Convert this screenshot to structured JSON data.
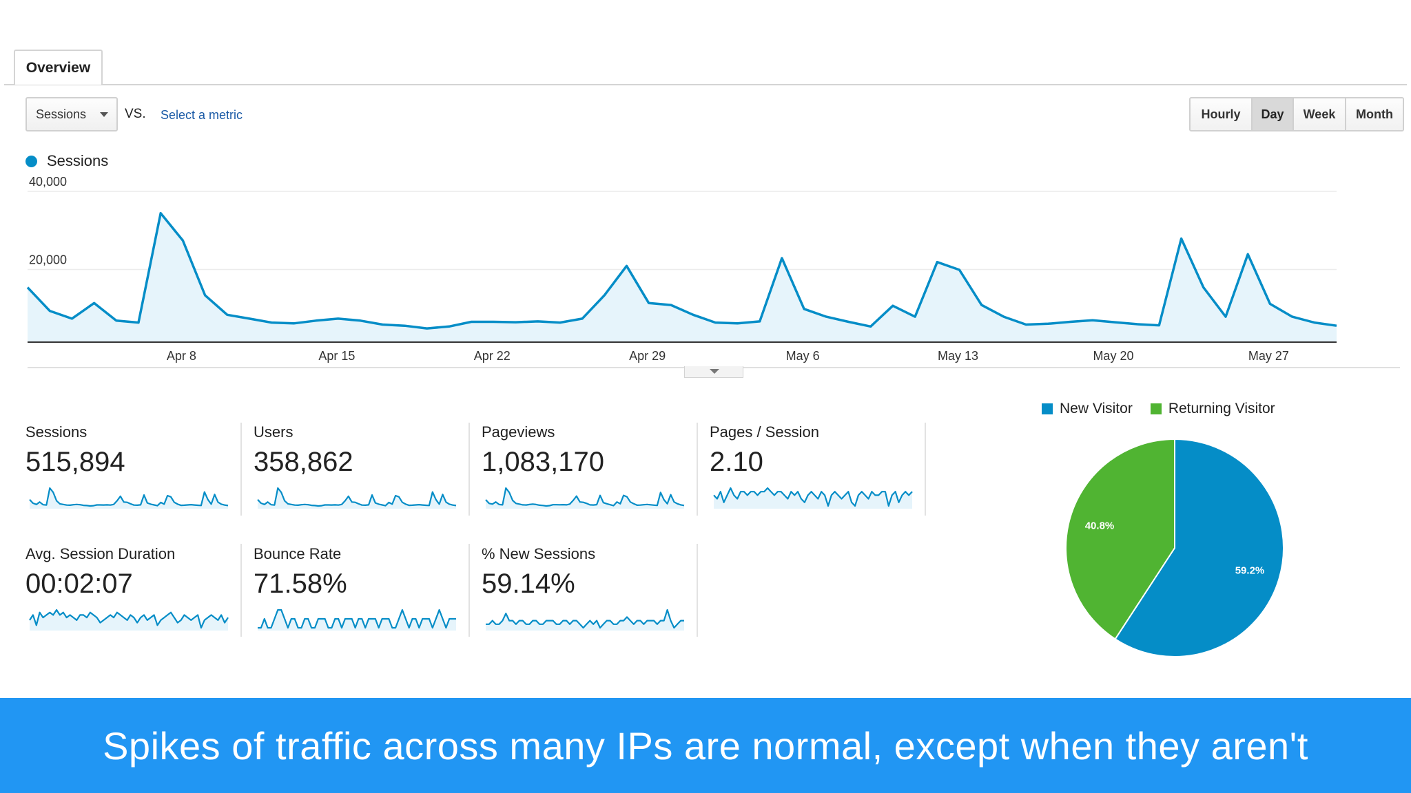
{
  "tabs": [
    {
      "label": "Overview",
      "active": true
    }
  ],
  "controls": {
    "primary_metric": "Sessions",
    "vs_label": "VS.",
    "secondary_metric_link": "Select a metric",
    "granularity": [
      {
        "label": "Hourly",
        "active": false
      },
      {
        "label": "Day",
        "active": true
      },
      {
        "label": "Week",
        "active": false
      },
      {
        "label": "Month",
        "active": false
      }
    ]
  },
  "colors": {
    "accent": "#058dc7",
    "returning": "#50b432",
    "banner": "#2196f3",
    "area_fill": "#e6f4fb"
  },
  "chart_data": [
    {
      "type": "area",
      "legend": [
        "Sessions"
      ],
      "y_ticks": [
        "40,000",
        "20,000"
      ],
      "ylim": [
        0,
        40000
      ],
      "x_tick_labels": [
        "Apr 8",
        "Apr 15",
        "Apr 22",
        "Apr 29",
        "May 6",
        "May 13",
        "May 20",
        "May 27"
      ],
      "x_tick_day_index": [
        7,
        14,
        21,
        28,
        35,
        42,
        49,
        56
      ],
      "series": [
        {
          "name": "Sessions",
          "values": [
            14000,
            8000,
            6000,
            10000,
            5500,
            5000,
            33000,
            26000,
            12000,
            7000,
            6000,
            5000,
            4800,
            5500,
            6000,
            5500,
            4500,
            4200,
            3500,
            4000,
            5200,
            5200,
            5100,
            5300,
            5000,
            6000,
            12000,
            19500,
            10000,
            9500,
            7000,
            5000,
            4800,
            5300,
            21500,
            8500,
            6500,
            5200,
            4000,
            9300,
            6500,
            20500,
            18500,
            9500,
            6500,
            4500,
            4700,
            5200,
            5600,
            5100,
            4600,
            4300,
            26500,
            14000,
            6500,
            22500,
            9800,
            6500,
            5000,
            4200
          ]
        }
      ]
    },
    {
      "type": "pie",
      "legend": [
        "New Visitor",
        "Returning Visitor"
      ],
      "slices": [
        {
          "label": "New Visitor",
          "value": 59.2,
          "text": "59.2%"
        },
        {
          "label": "Returning Visitor",
          "value": 40.8,
          "text": "40.8%"
        }
      ]
    }
  ],
  "kpis": [
    {
      "label": "Sessions",
      "value": "515,894",
      "spark": [
        14,
        8,
        6,
        10,
        5.5,
        5,
        33,
        26,
        12,
        7,
        6,
        5,
        4.8,
        5.5,
        6,
        5.5,
        4.5,
        4.2,
        3.5,
        4,
        5.2,
        5.2,
        5.1,
        5.3,
        5,
        6,
        12,
        19.5,
        10,
        9.5,
        7,
        5,
        4.8,
        5.3,
        21.5,
        8.5,
        6.5,
        5.2,
        4,
        9.3,
        6.5,
        20.5,
        18.5,
        9.5,
        6.5,
        4.5,
        4.7,
        5.2,
        5.6,
        5.1,
        4.6,
        4.3,
        26.5,
        14,
        6.5,
        22.5,
        9.8,
        6.5,
        5,
        4.2
      ]
    },
    {
      "label": "Users",
      "value": "358,862",
      "spark": [
        14,
        8,
        6,
        10,
        5.5,
        5,
        33,
        26,
        12,
        7,
        6,
        5,
        4.8,
        5.5,
        6,
        5.5,
        4.5,
        4.2,
        3.5,
        4,
        5.2,
        5.2,
        5.1,
        5.3,
        5,
        6,
        12,
        19.5,
        10,
        9.5,
        7,
        5,
        4.8,
        5.3,
        21.5,
        8.5,
        6.5,
        5.2,
        4,
        9.3,
        6.5,
        20.5,
        18.5,
        9.5,
        6.5,
        4.5,
        4.7,
        5.2,
        5.6,
        5.1,
        4.6,
        4.3,
        26.5,
        14,
        6.5,
        22.5,
        9.8,
        6.5,
        5,
        4.2
      ]
    },
    {
      "label": "Pageviews",
      "value": "1,083,170",
      "spark": [
        12,
        7,
        6,
        9,
        5.5,
        5,
        28,
        22,
        11,
        7,
        6,
        5,
        4.8,
        5.5,
        6,
        5.5,
        4.5,
        4.2,
        3.5,
        4,
        5.2,
        5.2,
        5.1,
        5.3,
        5,
        6,
        11,
        17,
        9,
        8.5,
        7,
        5,
        4.8,
        5.3,
        18,
        8,
        6.5,
        5.2,
        4,
        9,
        6.5,
        18,
        16,
        9,
        6.5,
        4.5,
        4.7,
        5.2,
        5.6,
        5.1,
        4.6,
        4.3,
        22,
        12,
        6.5,
        19,
        9,
        6.5,
        5,
        4.2
      ]
    },
    {
      "label": "Pages / Session",
      "value": "2.10",
      "spark": [
        11,
        10,
        12,
        9,
        11,
        13,
        11,
        10,
        12,
        12,
        11,
        12,
        12,
        11,
        12,
        12,
        13,
        12,
        11,
        12,
        12,
        11,
        10,
        12,
        11,
        12,
        10,
        9,
        11,
        12,
        11,
        10,
        12,
        11,
        8,
        11,
        12,
        11,
        10,
        11,
        12,
        9,
        8,
        11,
        12,
        11,
        10,
        12,
        11,
        11,
        12,
        12,
        8,
        11,
        12,
        9,
        11,
        12,
        11,
        12
      ]
    },
    {
      "label": "Avg. Session Duration",
      "value": "00:02:07",
      "spark": [
        10,
        12,
        8,
        13,
        11,
        12,
        13,
        12,
        14,
        12,
        13,
        11,
        12,
        11,
        10,
        12,
        12,
        11,
        13,
        12,
        11,
        9,
        10,
        11,
        12,
        11,
        13,
        12,
        11,
        10,
        12,
        11,
        9,
        11,
        12,
        10,
        11,
        12,
        8,
        10,
        11,
        12,
        13,
        11,
        9,
        10,
        12,
        11,
        10,
        11,
        12,
        7,
        10,
        11,
        12,
        11,
        10,
        12,
        9,
        11
      ]
    },
    {
      "label": "Bounce Rate",
      "value": "71.58%",
      "spark": [
        11,
        11,
        12,
        11,
        11,
        12,
        13,
        13,
        12,
        11,
        12,
        12,
        11,
        11,
        12,
        12,
        11,
        11,
        12,
        12,
        12,
        11,
        11,
        12,
        12,
        11,
        12,
        12,
        12,
        11,
        12,
        12,
        11,
        12,
        12,
        12,
        11,
        12,
        12,
        12,
        11,
        11,
        12,
        13,
        12,
        11,
        12,
        12,
        11,
        12,
        12,
        12,
        11,
        12,
        13,
        12,
        11,
        12,
        12,
        12
      ]
    },
    {
      "label": "% New Sessions",
      "value": "59.14%",
      "spark": [
        11,
        11,
        12,
        11,
        11,
        12,
        14,
        12,
        12,
        11,
        12,
        12,
        11,
        11,
        12,
        12,
        11,
        11,
        12,
        12,
        12,
        11,
        11,
        12,
        12,
        11,
        12,
        12,
        11,
        10,
        11,
        12,
        11,
        12,
        10,
        11,
        12,
        12,
        11,
        11,
        12,
        12,
        13,
        12,
        11,
        12,
        12,
        11,
        12,
        12,
        12,
        11,
        12,
        12,
        15,
        12,
        10,
        11,
        12,
        12
      ]
    }
  ],
  "caption": "Spikes of traffic across many IPs are normal, except when they aren't"
}
